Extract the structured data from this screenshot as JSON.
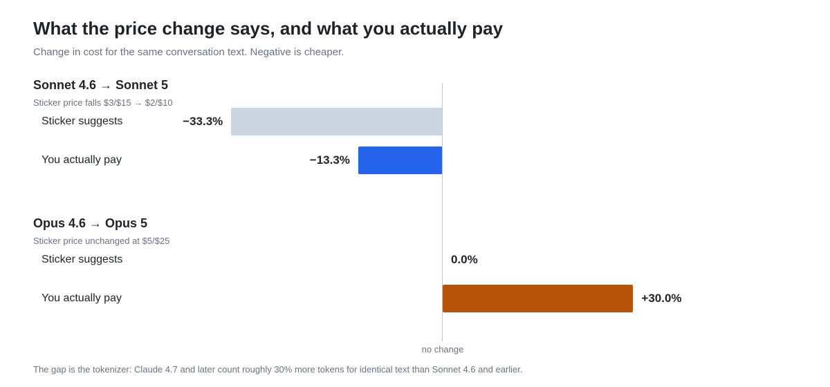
{
  "header": {
    "title": "What the price change says, and what you actually pay",
    "subtitle": "Change in cost for the same conversation text. Negative is cheaper."
  },
  "chart_data": {
    "type": "bar",
    "orientation": "horizontal",
    "title": "What the price change says, and what you actually pay",
    "subtitle": "Change in cost for the same conversation text. Negative is cheaper.",
    "xlim": [
      -55,
      55
    ],
    "zero_label": "no change",
    "groups": [
      {
        "name": "Sonnet 4.6 → Sonnet 5",
        "note": "Sticker price falls $3/$15 → $2/$10",
        "rows": [
          {
            "label": "Sticker suggests",
            "value": -33.3,
            "display": "−33.3%",
            "color": "#cbd5e1"
          },
          {
            "label": "You actually pay",
            "value": -13.3,
            "display": "−13.3%",
            "color": "#2563eb"
          }
        ]
      },
      {
        "name": "Opus 4.6 → Opus 5",
        "note": "Sticker price unchanged at $5/$25",
        "rows": [
          {
            "label": "Sticker suggests",
            "value": 0.0,
            "display": "0.0%",
            "color": "#cbd5e1"
          },
          {
            "label": "You actually pay",
            "value": 30.0,
            "display": "+30.0%",
            "color": "#b45309"
          }
        ]
      }
    ]
  },
  "footnote": "The gap is the tokenizer: Claude 4.7 and later count roughly 30% more tokens for identical text than Sonnet 4.6 and earlier."
}
